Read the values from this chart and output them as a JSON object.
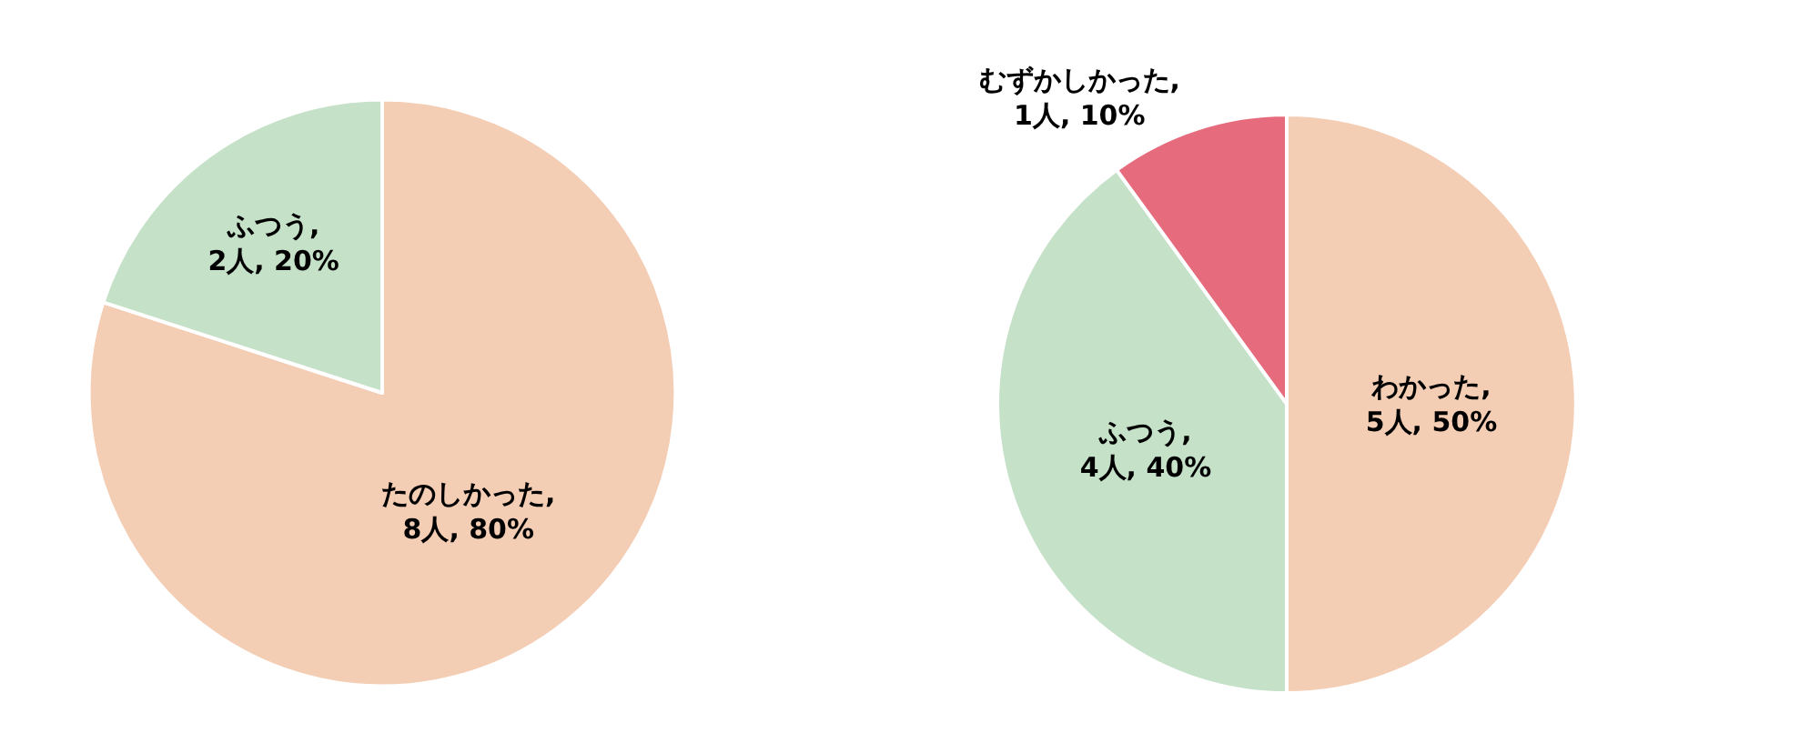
{
  "chart_data": [
    {
      "type": "pie",
      "categories": [
        "たのしかった",
        "ふつう"
      ],
      "values": [
        8,
        2
      ],
      "colors": [
        "#f4cdb5",
        "#c5e1c8"
      ],
      "value_labels": [
        ", 8人, 80%",
        ", 2人, 20%"
      ]
    },
    {
      "type": "pie",
      "categories": [
        "わかった",
        "ふつう",
        "むずかしかった"
      ],
      "values": [
        5,
        4,
        1
      ],
      "colors": [
        "#f4cdb5",
        "#c5e1c8",
        "#e66c7d"
      ],
      "value_labels": [
        ", 5人, 50%",
        ", 4人, 40%",
        ", 1人, 10%"
      ]
    }
  ]
}
